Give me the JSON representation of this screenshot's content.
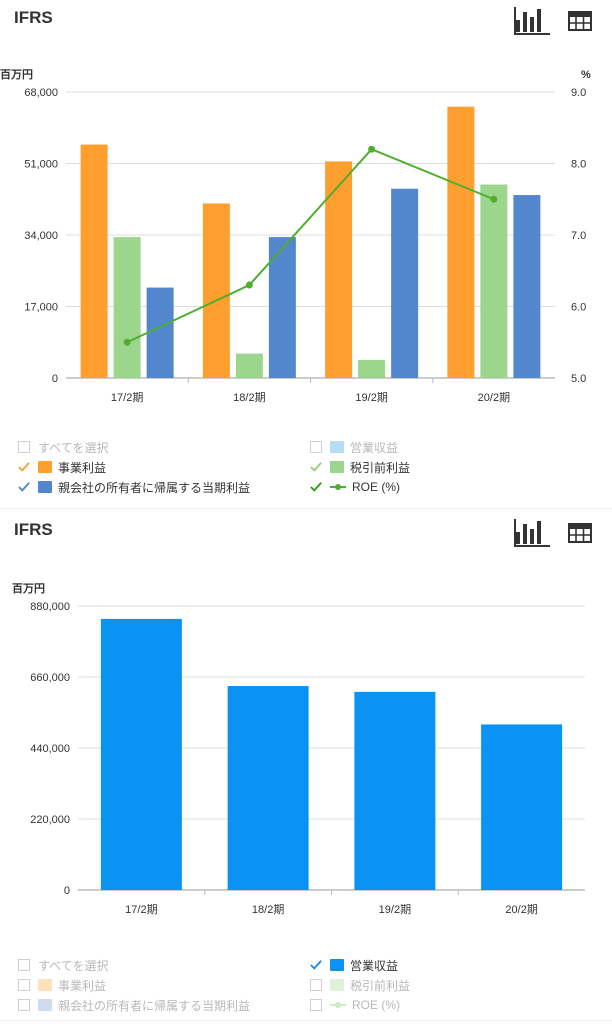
{
  "panels": [
    {
      "title": "IFRS",
      "unit_left": "百万円",
      "unit_right": "%",
      "legend": [
        {
          "label": "すべてを選択",
          "checked": false,
          "color": "",
          "kind": "none"
        },
        {
          "label": "営業収益",
          "checked": false,
          "color": "#b7dcf6",
          "kind": "bar"
        },
        {
          "label": "事業利益",
          "checked": true,
          "color": "#ff9f2f",
          "kind": "bar"
        },
        {
          "label": "税引前利益",
          "checked": true,
          "color": "#9bd68c",
          "kind": "bar"
        },
        {
          "label": "親会社の所有者に帰属する当期利益",
          "checked": true,
          "color": "#5287cd",
          "kind": "bar"
        },
        {
          "label": "ROE (%)",
          "checked": true,
          "color": "#4fae2e",
          "kind": "line"
        }
      ]
    },
    {
      "title": "IFRS",
      "unit_left": "百万円",
      "legend": [
        {
          "label": "すべてを選択",
          "checked": false,
          "color": "",
          "kind": "none"
        },
        {
          "label": "営業収益",
          "checked": true,
          "color": "#0a93f2",
          "kind": "bar"
        },
        {
          "label": "事業利益",
          "checked": false,
          "color": "#fde1bd",
          "kind": "bar"
        },
        {
          "label": "税引前利益",
          "checked": false,
          "color": "#dff1d9",
          "kind": "bar"
        },
        {
          "label": "親会社の所有者に帰属する当期利益",
          "checked": false,
          "color": "#cfdcf0",
          "kind": "bar"
        },
        {
          "label": "ROE (%)",
          "checked": false,
          "color": "#cfe8c5",
          "kind": "line"
        }
      ]
    }
  ],
  "chart_data": [
    {
      "type": "bar",
      "categories": [
        "17/2期",
        "18/2期",
        "19/2期",
        "20/2期"
      ],
      "y_ticks": [
        "0",
        "17,000",
        "34,000",
        "51,000",
        "68,000"
      ],
      "ylim": [
        0,
        68000
      ],
      "y2_ticks": [
        "5.0",
        "6.0",
        "7.0",
        "8.0",
        "9.0"
      ],
      "y2lim": [
        5.0,
        9.0
      ],
      "series": [
        {
          "name": "事業利益",
          "values": [
            55500,
            41500,
            51500,
            64500
          ],
          "color": "#ff9f2f",
          "axis": "left",
          "kind": "bar"
        },
        {
          "name": "税引前利益",
          "values": [
            33500,
            5800,
            4300,
            46000
          ],
          "color": "#9bd68c",
          "axis": "left",
          "kind": "bar"
        },
        {
          "name": "親会社の所有者に帰属する当期利益",
          "values": [
            21500,
            33500,
            45000,
            43500
          ],
          "color": "#5287cd",
          "axis": "left",
          "kind": "bar"
        },
        {
          "name": "ROE (%)",
          "values": [
            5.5,
            6.3,
            8.2,
            7.5
          ],
          "color": "#4fae2e",
          "axis": "right",
          "kind": "line"
        }
      ],
      "grid": true,
      "legend_position": "bottom"
    },
    {
      "type": "bar",
      "categories": [
        "17/2期",
        "18/2期",
        "19/2期",
        "20/2期"
      ],
      "y_ticks": [
        "0",
        "220,000",
        "440,000",
        "660,000",
        "880,000"
      ],
      "ylim": [
        0,
        880000
      ],
      "series": [
        {
          "name": "営業収益",
          "values": [
            840000,
            632000,
            614000,
            513000
          ],
          "color": "#0a93f2",
          "axis": "left",
          "kind": "bar"
        }
      ],
      "grid": true,
      "legend_position": "bottom"
    }
  ]
}
